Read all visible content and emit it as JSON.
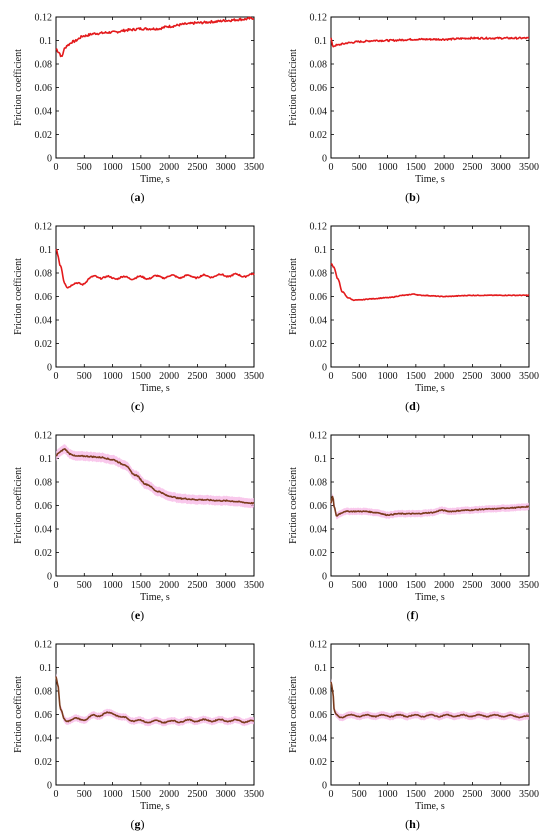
{
  "chart_data": [
    {
      "id": "a",
      "caption_letter": "a",
      "type": "line",
      "xlabel": "Time, s",
      "ylabel": "Friction coefficient",
      "xlim": [
        0,
        3500
      ],
      "ylim": [
        0,
        0.12
      ],
      "xticks": [
        "0",
        "500",
        "1000",
        "1500",
        "2000",
        "2500",
        "3000",
        "3500"
      ],
      "yticks": [
        "0",
        "0.02",
        "0.04",
        "0.06",
        "0.08",
        "0.1",
        "0.12"
      ],
      "grid": false,
      "colors": [
        "#e31a1c"
      ],
      "noise": 0.002,
      "series": [
        {
          "x": [
            0,
            50,
            100,
            150,
            200,
            300,
            500,
            700,
            1000,
            1300,
            1500,
            1800,
            2000,
            2300,
            2500,
            2800,
            3000,
            3300,
            3500
          ],
          "y": [
            0.093,
            0.09,
            0.086,
            0.093,
            0.096,
            0.099,
            0.104,
            0.106,
            0.107,
            0.109,
            0.11,
            0.11,
            0.112,
            0.114,
            0.115,
            0.116,
            0.117,
            0.118,
            0.119
          ]
        }
      ]
    },
    {
      "id": "b",
      "caption_letter": "b",
      "type": "line",
      "xlabel": "Time, s",
      "ylabel": "Friction coefficient",
      "xlim": [
        0,
        3500
      ],
      "ylim": [
        0,
        0.12
      ],
      "xticks": [
        "0",
        "500",
        "1000",
        "1500",
        "2000",
        "2500",
        "3000",
        "3500"
      ],
      "yticks": [
        "0",
        "0.02",
        "0.04",
        "0.06",
        "0.08",
        "0.1",
        "0.12"
      ],
      "grid": false,
      "colors": [
        "#e31a1c"
      ],
      "noise": 0.0015,
      "series": [
        {
          "x": [
            0,
            30,
            100,
            200,
            300,
            500,
            800,
            1000,
            1500,
            2000,
            2500,
            3000,
            3500
          ],
          "y": [
            0.102,
            0.095,
            0.096,
            0.097,
            0.098,
            0.099,
            0.1,
            0.1,
            0.101,
            0.101,
            0.102,
            0.102,
            0.102
          ]
        }
      ]
    },
    {
      "id": "c",
      "caption_letter": "c",
      "type": "line",
      "xlabel": "Time, s",
      "ylabel": "Friction coefficient",
      "xlim": [
        0,
        3500
      ],
      "ylim": [
        0,
        0.12
      ],
      "xticks": [
        "0",
        "500",
        "1000",
        "1500",
        "2000",
        "2500",
        "3000",
        "3500"
      ],
      "yticks": [
        "0",
        "0.02",
        "0.04",
        "0.06",
        "0.08",
        "0.1",
        "0.12"
      ],
      "grid": false,
      "colors": [
        "#e31a1c"
      ],
      "noise": 0.0012,
      "wave": 0.0012,
      "series": [
        {
          "x": [
            0,
            80,
            150,
            200,
            300,
            450,
            600,
            700,
            900,
            1200,
            1500,
            2000,
            2500,
            3000,
            3500
          ],
          "y": [
            0.1,
            0.085,
            0.072,
            0.069,
            0.07,
            0.071,
            0.075,
            0.077,
            0.076,
            0.076,
            0.076,
            0.077,
            0.077,
            0.078,
            0.078
          ]
        }
      ]
    },
    {
      "id": "d",
      "caption_letter": "d",
      "type": "line",
      "xlabel": "Time, s",
      "ylabel": "Friction coefficient",
      "xlim": [
        0,
        3500
      ],
      "ylim": [
        0,
        0.12
      ],
      "xticks": [
        "0",
        "500",
        "1000",
        "1500",
        "2000",
        "2500",
        "3000",
        "3500"
      ],
      "yticks": [
        "0",
        "0.02",
        "0.04",
        "0.06",
        "0.08",
        "0.1",
        "0.12"
      ],
      "grid": false,
      "colors": [
        "#e31a1c"
      ],
      "noise": 0.0006,
      "series": [
        {
          "x": [
            0,
            50,
            120,
            200,
            300,
            400,
            500,
            700,
            1000,
            1300,
            1450,
            1600,
            2000,
            2500,
            3000,
            3500
          ],
          "y": [
            0.088,
            0.085,
            0.075,
            0.064,
            0.059,
            0.057,
            0.057,
            0.058,
            0.059,
            0.061,
            0.062,
            0.061,
            0.06,
            0.061,
            0.061,
            0.061
          ]
        }
      ]
    },
    {
      "id": "e",
      "caption_letter": "e",
      "type": "line",
      "xlabel": "Time, s",
      "ylabel": "Friction coefficient",
      "xlim": [
        0,
        3500
      ],
      "ylim": [
        0,
        0.12
      ],
      "xticks": [
        "0",
        "500",
        "1000",
        "1500",
        "2000",
        "2500",
        "3000",
        "3500"
      ],
      "yticks": [
        "0",
        "0.02",
        "0.04",
        "0.06",
        "0.08",
        "0.1",
        "0.12"
      ],
      "grid": false,
      "colors": [
        "#7a3b1c"
      ],
      "band_color": "#f7b5e6",
      "band": 0.004,
      "noise": 0.001,
      "series": [
        {
          "x": [
            0,
            50,
            150,
            250,
            350,
            500,
            800,
            1000,
            1200,
            1400,
            1600,
            1800,
            2000,
            2200,
            2500,
            3000,
            3500
          ],
          "y": [
            0.102,
            0.105,
            0.108,
            0.104,
            0.102,
            0.102,
            0.101,
            0.099,
            0.095,
            0.086,
            0.078,
            0.072,
            0.068,
            0.066,
            0.065,
            0.064,
            0.062
          ]
        }
      ]
    },
    {
      "id": "f",
      "caption_letter": "f",
      "type": "line",
      "xlabel": "Time, s",
      "ylabel": "Friction coefficient",
      "xlim": [
        0,
        3500
      ],
      "ylim": [
        0,
        0.12
      ],
      "xticks": [
        "0",
        "500",
        "1000",
        "1500",
        "2000",
        "2500",
        "3000",
        "3500"
      ],
      "yticks": [
        "0",
        "0.02",
        "0.04",
        "0.06",
        "0.08",
        "0.1",
        "0.12"
      ],
      "grid": false,
      "colors": [
        "#7a3b1c"
      ],
      "band_color": "#f7b5e6",
      "band": 0.003,
      "noise": 0.0008,
      "series": [
        {
          "x": [
            0,
            30,
            60,
            100,
            150,
            250,
            400,
            600,
            800,
            1000,
            1200,
            1500,
            1800,
            1950,
            2100,
            2400,
            2800,
            3200,
            3500
          ],
          "y": [
            0.062,
            0.068,
            0.058,
            0.051,
            0.053,
            0.055,
            0.055,
            0.055,
            0.054,
            0.052,
            0.053,
            0.053,
            0.054,
            0.056,
            0.055,
            0.056,
            0.057,
            0.058,
            0.059
          ]
        }
      ]
    },
    {
      "id": "g",
      "caption_letter": "g",
      "type": "line",
      "xlabel": "Time, s",
      "ylabel": "Friction coefficient",
      "xlim": [
        0,
        3500
      ],
      "ylim": [
        0,
        0.12
      ],
      "xticks": [
        "0",
        "500",
        "1000",
        "1500",
        "2000",
        "2500",
        "3000",
        "3500"
      ],
      "yticks": [
        "0",
        "0.02",
        "0.04",
        "0.06",
        "0.08",
        "0.1",
        "0.12"
      ],
      "grid": false,
      "colors": [
        "#7a3b1c"
      ],
      "band_color": "#f7b5e6",
      "band": 0.003,
      "noise": 0.0008,
      "wave": 0.0009,
      "series": [
        {
          "x": [
            0,
            30,
            80,
            150,
            200,
            300,
            500,
            700,
            900,
            1000,
            1200,
            1400,
            1600,
            2000,
            2500,
            3000,
            3500
          ],
          "y": [
            0.092,
            0.085,
            0.064,
            0.056,
            0.055,
            0.056,
            0.056,
            0.059,
            0.061,
            0.061,
            0.057,
            0.055,
            0.054,
            0.054,
            0.055,
            0.055,
            0.054
          ]
        }
      ]
    },
    {
      "id": "h",
      "caption_letter": "h",
      "type": "line",
      "xlabel": "Time, s",
      "ylabel": "Friction coefficient",
      "xlim": [
        0,
        3500
      ],
      "ylim": [
        0,
        0.12
      ],
      "xticks": [
        "0",
        "500",
        "1000",
        "1500",
        "2000",
        "2500",
        "3000",
        "3500"
      ],
      "yticks": [
        "0",
        "0.02",
        "0.04",
        "0.06",
        "0.08",
        "0.1",
        "0.12"
      ],
      "grid": false,
      "colors": [
        "#7a3b1c"
      ],
      "band_color": "#f7b5e6",
      "band": 0.003,
      "noise": 0.0007,
      "wave": 0.0008,
      "series": [
        {
          "x": [
            0,
            30,
            60,
            100,
            150,
            300,
            500,
            1000,
            1500,
            2000,
            2500,
            3000,
            3500
          ],
          "y": [
            0.088,
            0.08,
            0.062,
            0.059,
            0.058,
            0.059,
            0.059,
            0.059,
            0.059,
            0.059,
            0.059,
            0.059,
            0.058
          ]
        }
      ]
    }
  ]
}
